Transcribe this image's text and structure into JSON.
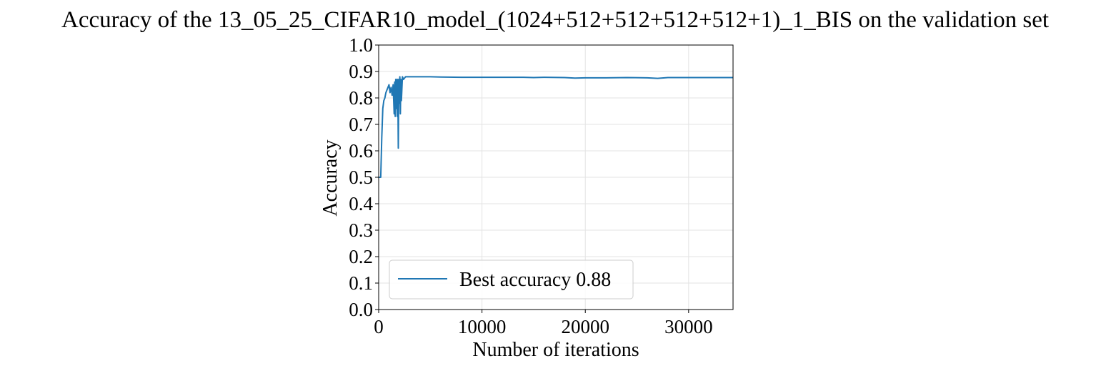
{
  "chart_data": {
    "type": "line",
    "title": "Accuracy of the 13_05_25_CIFAR10_model_(1024+512+512+512+512+1)_1_BIS on the validation set",
    "xlabel": "Number of iterations",
    "ylabel": "Accuracy",
    "xlim": [
      0,
      34300
    ],
    "ylim": [
      0.0,
      1.0
    ],
    "xticks": [
      0,
      10000,
      20000,
      30000
    ],
    "xtick_labels": [
      "0",
      "10000",
      "20000",
      "30000"
    ],
    "yticks": [
      0.0,
      0.1,
      0.2,
      0.3,
      0.4,
      0.5,
      0.6,
      0.7,
      0.8,
      0.9,
      1.0
    ],
    "ytick_labels": [
      "0.0",
      "0.1",
      "0.2",
      "0.3",
      "0.4",
      "0.5",
      "0.6",
      "0.7",
      "0.8",
      "0.9",
      "1.0"
    ],
    "grid": true,
    "legend_position": "lower-left",
    "series": [
      {
        "name": "Best accuracy 0.88",
        "color": "#1f77b4",
        "x": [
          0,
          100,
          200,
          300,
          400,
          500,
          600,
          700,
          800,
          900,
          1000,
          1100,
          1200,
          1300,
          1400,
          1500,
          1550,
          1600,
          1650,
          1700,
          1750,
          1800,
          1850,
          1900,
          1950,
          2000,
          2050,
          2100,
          2150,
          2200,
          2300,
          2400,
          2600,
          2800,
          3000,
          3500,
          4000,
          5000,
          6000,
          8000,
          10000,
          12000,
          14000,
          15000,
          16000,
          18000,
          19000,
          20000,
          22000,
          24000,
          26000,
          27000,
          28000,
          30000,
          32000,
          34300
        ],
        "y": [
          0.5,
          0.5,
          0.5,
          0.65,
          0.76,
          0.79,
          0.8,
          0.82,
          0.83,
          0.84,
          0.85,
          0.82,
          0.84,
          0.81,
          0.85,
          0.74,
          0.86,
          0.73,
          0.87,
          0.76,
          0.87,
          0.73,
          0.87,
          0.61,
          0.87,
          0.78,
          0.88,
          0.74,
          0.87,
          0.79,
          0.88,
          0.87,
          0.88,
          0.88,
          0.88,
          0.88,
          0.88,
          0.88,
          0.879,
          0.878,
          0.878,
          0.878,
          0.878,
          0.877,
          0.878,
          0.877,
          0.875,
          0.876,
          0.876,
          0.877,
          0.876,
          0.874,
          0.877,
          0.877,
          0.877,
          0.877
        ]
      }
    ]
  }
}
